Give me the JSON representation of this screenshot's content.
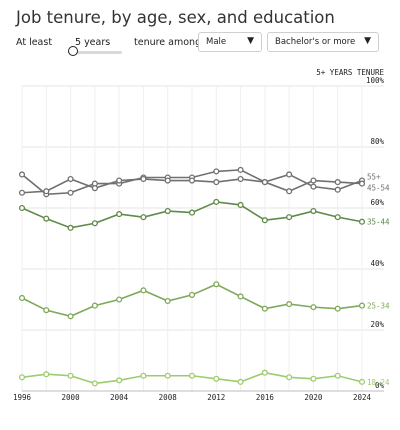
{
  "title": "Job tenure, by age, sex, and education",
  "controls": {
    "at_least_label": "At least",
    "years_value": "5 years",
    "slider_fraction": 0.08,
    "tenure_among_label": "tenure among",
    "sex_select": "Male",
    "education_select": "Bachelor's or more"
  },
  "chart_data": {
    "type": "line",
    "ylabel": "5+ YEARS TENURE",
    "x": [
      1996,
      1998,
      2000,
      2002,
      2004,
      2006,
      2008,
      2010,
      2012,
      2014,
      2016,
      2018,
      2020,
      2022,
      2024
    ],
    "xticks": [
      "1996",
      "1998",
      "2000",
      "2002",
      "2004",
      "2006",
      "2008",
      "2010",
      "2012",
      "2014",
      "2016",
      "2018",
      "2020",
      "2022",
      "2024"
    ],
    "ylim": [
      0,
      100
    ],
    "yticks": [
      {
        "value": 100,
        "label": "100%"
      },
      {
        "value": 80,
        "label": "80%"
      },
      {
        "value": 60,
        "label": "60%"
      },
      {
        "value": 40,
        "label": "40%"
      },
      {
        "value": 20,
        "label": "20%"
      },
      {
        "value": 0,
        "label": "0%"
      }
    ],
    "grid": true,
    "series": [
      {
        "name": "55+",
        "color": "#707070",
        "values": [
          71,
          64.5,
          65,
          68,
          68,
          70,
          70,
          70,
          72,
          72.5,
          68.5,
          71,
          67,
          66,
          69
        ]
      },
      {
        "name": "45-54",
        "color": "#707070",
        "values": [
          65,
          65.5,
          69.5,
          66.5,
          69,
          69.5,
          69,
          69,
          68.5,
          69.5,
          68.5,
          65.5,
          69,
          68.5,
          68
        ]
      },
      {
        "name": "35-44",
        "color": "#5f8a48",
        "values": [
          60,
          56.5,
          53.5,
          55,
          58,
          57,
          59,
          58.5,
          62,
          61,
          56,
          57,
          59,
          57,
          55.5
        ]
      },
      {
        "name": "25-34",
        "color": "#7ea85a",
        "values": [
          30.5,
          26.5,
          24.5,
          28,
          30,
          33,
          29.5,
          31.5,
          35,
          31,
          27,
          28.5,
          27.5,
          27,
          28
        ]
      },
      {
        "name": "18-24",
        "color": "#9ccc6e",
        "values": [
          4.5,
          5.5,
          5,
          2.5,
          3.5,
          5,
          5,
          5,
          4,
          3,
          6,
          4.5,
          4,
          5,
          3
        ]
      }
    ]
  }
}
